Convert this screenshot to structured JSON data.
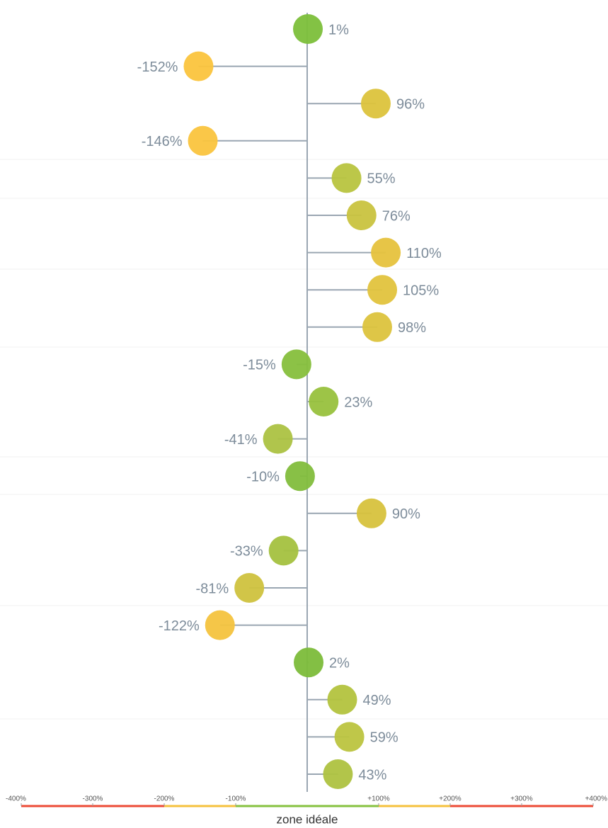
{
  "chart_data": {
    "type": "lollipop",
    "xlabel": "zone idéale",
    "values": [
      1,
      -152,
      96,
      -146,
      55,
      76,
      110,
      105,
      98,
      -15,
      23,
      -41,
      -10,
      90,
      -33,
      -81,
      -122,
      2,
      49,
      59,
      43
    ],
    "value_labels": [
      "1%",
      "-152%",
      "96%",
      "-146%",
      "55%",
      "76%",
      "110%",
      "105%",
      "98%",
      "-15%",
      "23%",
      "-41%",
      "-10%",
      "90%",
      "-33%",
      "-81%",
      "-122%",
      "2%",
      "49%",
      "59%",
      "43%"
    ],
    "colors": [
      "#7cbf3a",
      "#fbc43d",
      "#dcc33c",
      "#fac43e",
      "#b8c43f",
      "#c9c33f",
      "#e6c23d",
      "#e2c33d",
      "#dcc33d",
      "#86bf3c",
      "#98c13d",
      "#acc242",
      "#82bd3c",
      "#d7c23d",
      "#a4c13f",
      "#cfc23e",
      "#f4c33e",
      "#7cbc3a",
      "#b3c33e",
      "#bcc43f",
      "#aec240"
    ],
    "xlim": [
      -400,
      400
    ],
    "xticks": [
      {
        "value": -400,
        "label": "-400%"
      },
      {
        "value": -300,
        "label": "-300%"
      },
      {
        "value": -200,
        "label": "-200%"
      },
      {
        "value": -100,
        "label": "-100%"
      },
      {
        "value": 100,
        "label": "+100%"
      },
      {
        "value": 200,
        "label": "+200%"
      },
      {
        "value": 300,
        "label": "+300%"
      },
      {
        "value": 400,
        "label": "+400%"
      }
    ],
    "zones": [
      {
        "from": -400,
        "to": -200,
        "color": "#ec4b36"
      },
      {
        "from": -200,
        "to": -100,
        "color": "#f5c13c"
      },
      {
        "from": -100,
        "to": 100,
        "color": "#86c23f"
      },
      {
        "from": 100,
        "to": 200,
        "color": "#f5c13c"
      },
      {
        "from": 200,
        "to": 400,
        "color": "#ec4b36"
      }
    ]
  }
}
